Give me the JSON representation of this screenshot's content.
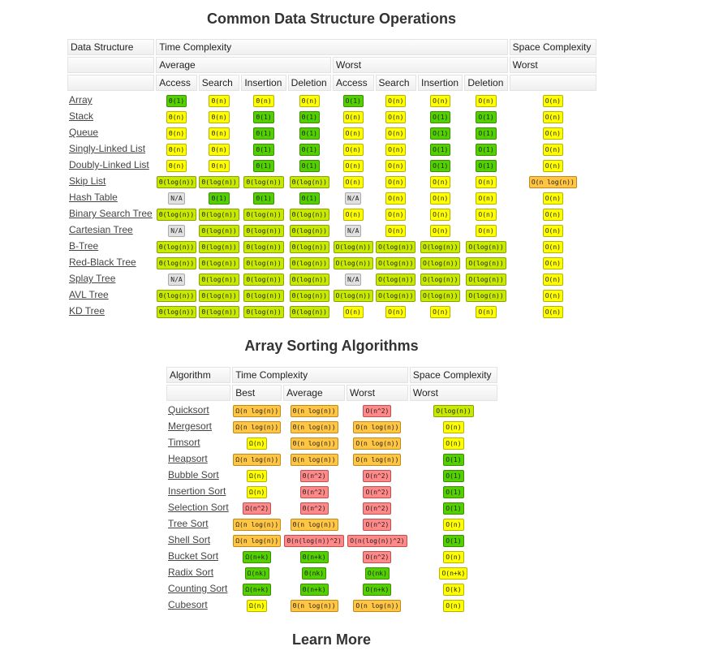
{
  "titles": {
    "ds": "Common Data Structure Operations",
    "sort": "Array Sorting Algorithms",
    "learn": "Learn More"
  },
  "ds_table": {
    "header": {
      "data_structure": "Data Structure",
      "time_complexity": "Time Complexity",
      "space_complexity": "Space Complexity",
      "average": "Average",
      "worst": "Worst",
      "space_worst": "Worst",
      "ops": [
        "Access",
        "Search",
        "Insertion",
        "Deletion",
        "Access",
        "Search",
        "Insertion",
        "Deletion"
      ]
    },
    "rows": [
      {
        "name": "Array",
        "cells": [
          [
            "Θ(1)",
            "g"
          ],
          [
            "Θ(n)",
            "y"
          ],
          [
            "Θ(n)",
            "y"
          ],
          [
            "Θ(n)",
            "y"
          ],
          [
            "O(1)",
            "g"
          ],
          [
            "O(n)",
            "y"
          ],
          [
            "O(n)",
            "y"
          ],
          [
            "O(n)",
            "y"
          ],
          [
            "O(n)",
            "y"
          ]
        ]
      },
      {
        "name": "Stack",
        "cells": [
          [
            "Θ(n)",
            "y"
          ],
          [
            "Θ(n)",
            "y"
          ],
          [
            "Θ(1)",
            "g"
          ],
          [
            "Θ(1)",
            "g"
          ],
          [
            "O(n)",
            "y"
          ],
          [
            "O(n)",
            "y"
          ],
          [
            "O(1)",
            "g"
          ],
          [
            "O(1)",
            "g"
          ],
          [
            "O(n)",
            "y"
          ]
        ]
      },
      {
        "name": "Queue",
        "cells": [
          [
            "Θ(n)",
            "y"
          ],
          [
            "Θ(n)",
            "y"
          ],
          [
            "Θ(1)",
            "g"
          ],
          [
            "Θ(1)",
            "g"
          ],
          [
            "O(n)",
            "y"
          ],
          [
            "O(n)",
            "y"
          ],
          [
            "O(1)",
            "g"
          ],
          [
            "O(1)",
            "g"
          ],
          [
            "O(n)",
            "y"
          ]
        ]
      },
      {
        "name": "Singly-Linked List",
        "cells": [
          [
            "Θ(n)",
            "y"
          ],
          [
            "Θ(n)",
            "y"
          ],
          [
            "Θ(1)",
            "g"
          ],
          [
            "Θ(1)",
            "g"
          ],
          [
            "O(n)",
            "y"
          ],
          [
            "O(n)",
            "y"
          ],
          [
            "O(1)",
            "g"
          ],
          [
            "O(1)",
            "g"
          ],
          [
            "O(n)",
            "y"
          ]
        ]
      },
      {
        "name": "Doubly-Linked List",
        "cells": [
          [
            "Θ(n)",
            "y"
          ],
          [
            "Θ(n)",
            "y"
          ],
          [
            "Θ(1)",
            "g"
          ],
          [
            "Θ(1)",
            "g"
          ],
          [
            "O(n)",
            "y"
          ],
          [
            "O(n)",
            "y"
          ],
          [
            "O(1)",
            "g"
          ],
          [
            "O(1)",
            "g"
          ],
          [
            "O(n)",
            "y"
          ]
        ]
      },
      {
        "name": "Skip List",
        "cells": [
          [
            "Θ(log(n))",
            "lg"
          ],
          [
            "Θ(log(n))",
            "lg"
          ],
          [
            "Θ(log(n))",
            "lg"
          ],
          [
            "Θ(log(n))",
            "lg"
          ],
          [
            "O(n)",
            "y"
          ],
          [
            "O(n)",
            "y"
          ],
          [
            "O(n)",
            "y"
          ],
          [
            "O(n)",
            "y"
          ],
          [
            "O(n log(n))",
            "o"
          ]
        ]
      },
      {
        "name": "Hash Table",
        "cells": [
          [
            "N/A",
            "gr"
          ],
          [
            "Θ(1)",
            "g"
          ],
          [
            "Θ(1)",
            "g"
          ],
          [
            "Θ(1)",
            "g"
          ],
          [
            "N/A",
            "gr"
          ],
          [
            "O(n)",
            "y"
          ],
          [
            "O(n)",
            "y"
          ],
          [
            "O(n)",
            "y"
          ],
          [
            "O(n)",
            "y"
          ]
        ]
      },
      {
        "name": "Binary Search Tree",
        "cells": [
          [
            "Θ(log(n))",
            "lg"
          ],
          [
            "Θ(log(n))",
            "lg"
          ],
          [
            "Θ(log(n))",
            "lg"
          ],
          [
            "Θ(log(n))",
            "lg"
          ],
          [
            "O(n)",
            "y"
          ],
          [
            "O(n)",
            "y"
          ],
          [
            "O(n)",
            "y"
          ],
          [
            "O(n)",
            "y"
          ],
          [
            "O(n)",
            "y"
          ]
        ]
      },
      {
        "name": "Cartesian Tree",
        "cells": [
          [
            "N/A",
            "gr"
          ],
          [
            "Θ(log(n))",
            "lg"
          ],
          [
            "Θ(log(n))",
            "lg"
          ],
          [
            "Θ(log(n))",
            "lg"
          ],
          [
            "N/A",
            "gr"
          ],
          [
            "O(n)",
            "y"
          ],
          [
            "O(n)",
            "y"
          ],
          [
            "O(n)",
            "y"
          ],
          [
            "O(n)",
            "y"
          ]
        ]
      },
      {
        "name": "B-Tree",
        "cells": [
          [
            "Θ(log(n))",
            "lg"
          ],
          [
            "Θ(log(n))",
            "lg"
          ],
          [
            "Θ(log(n))",
            "lg"
          ],
          [
            "Θ(log(n))",
            "lg"
          ],
          [
            "O(log(n))",
            "lg"
          ],
          [
            "O(log(n))",
            "lg"
          ],
          [
            "O(log(n))",
            "lg"
          ],
          [
            "O(log(n))",
            "lg"
          ],
          [
            "O(n)",
            "y"
          ]
        ]
      },
      {
        "name": "Red-Black Tree",
        "cells": [
          [
            "Θ(log(n))",
            "lg"
          ],
          [
            "Θ(log(n))",
            "lg"
          ],
          [
            "Θ(log(n))",
            "lg"
          ],
          [
            "Θ(log(n))",
            "lg"
          ],
          [
            "O(log(n))",
            "lg"
          ],
          [
            "O(log(n))",
            "lg"
          ],
          [
            "O(log(n))",
            "lg"
          ],
          [
            "O(log(n))",
            "lg"
          ],
          [
            "O(n)",
            "y"
          ]
        ]
      },
      {
        "name": "Splay Tree",
        "cells": [
          [
            "N/A",
            "gr"
          ],
          [
            "Θ(log(n))",
            "lg"
          ],
          [
            "Θ(log(n))",
            "lg"
          ],
          [
            "Θ(log(n))",
            "lg"
          ],
          [
            "N/A",
            "gr"
          ],
          [
            "O(log(n))",
            "lg"
          ],
          [
            "O(log(n))",
            "lg"
          ],
          [
            "O(log(n))",
            "lg"
          ],
          [
            "O(n)",
            "y"
          ]
        ]
      },
      {
        "name": "AVL Tree",
        "cells": [
          [
            "Θ(log(n))",
            "lg"
          ],
          [
            "Θ(log(n))",
            "lg"
          ],
          [
            "Θ(log(n))",
            "lg"
          ],
          [
            "Θ(log(n))",
            "lg"
          ],
          [
            "O(log(n))",
            "lg"
          ],
          [
            "O(log(n))",
            "lg"
          ],
          [
            "O(log(n))",
            "lg"
          ],
          [
            "O(log(n))",
            "lg"
          ],
          [
            "O(n)",
            "y"
          ]
        ]
      },
      {
        "name": "KD Tree",
        "cells": [
          [
            "Θ(log(n))",
            "lg"
          ],
          [
            "Θ(log(n))",
            "lg"
          ],
          [
            "Θ(log(n))",
            "lg"
          ],
          [
            "Θ(log(n))",
            "lg"
          ],
          [
            "O(n)",
            "y"
          ],
          [
            "O(n)",
            "y"
          ],
          [
            "O(n)",
            "y"
          ],
          [
            "O(n)",
            "y"
          ],
          [
            "O(n)",
            "y"
          ]
        ]
      }
    ]
  },
  "sort_table": {
    "header": {
      "algorithm": "Algorithm",
      "time_complexity": "Time Complexity",
      "space_complexity": "Space Complexity",
      "best": "Best",
      "average": "Average",
      "worst": "Worst",
      "space_worst": "Worst"
    },
    "rows": [
      {
        "name": "Quicksort",
        "cells": [
          [
            "Ω(n log(n))",
            "o"
          ],
          [
            "Θ(n log(n))",
            "o"
          ],
          [
            "O(n^2)",
            "r"
          ],
          [
            "O(log(n))",
            "lg"
          ]
        ]
      },
      {
        "name": "Mergesort",
        "cells": [
          [
            "Ω(n log(n))",
            "o"
          ],
          [
            "Θ(n log(n))",
            "o"
          ],
          [
            "O(n log(n))",
            "o"
          ],
          [
            "O(n)",
            "y"
          ]
        ]
      },
      {
        "name": "Timsort",
        "cells": [
          [
            "Ω(n)",
            "y"
          ],
          [
            "Θ(n log(n))",
            "o"
          ],
          [
            "O(n log(n))",
            "o"
          ],
          [
            "O(n)",
            "y"
          ]
        ]
      },
      {
        "name": "Heapsort",
        "cells": [
          [
            "Ω(n log(n))",
            "o"
          ],
          [
            "Θ(n log(n))",
            "o"
          ],
          [
            "O(n log(n))",
            "o"
          ],
          [
            "O(1)",
            "g"
          ]
        ]
      },
      {
        "name": "Bubble Sort",
        "cells": [
          [
            "Ω(n)",
            "y"
          ],
          [
            "Θ(n^2)",
            "r"
          ],
          [
            "O(n^2)",
            "r"
          ],
          [
            "O(1)",
            "g"
          ]
        ]
      },
      {
        "name": "Insertion Sort",
        "cells": [
          [
            "Ω(n)",
            "y"
          ],
          [
            "Θ(n^2)",
            "r"
          ],
          [
            "O(n^2)",
            "r"
          ],
          [
            "O(1)",
            "g"
          ]
        ]
      },
      {
        "name": "Selection Sort",
        "cells": [
          [
            "Ω(n^2)",
            "r"
          ],
          [
            "Θ(n^2)",
            "r"
          ],
          [
            "O(n^2)",
            "r"
          ],
          [
            "O(1)",
            "g"
          ]
        ]
      },
      {
        "name": "Tree Sort",
        "cells": [
          [
            "Ω(n log(n))",
            "o"
          ],
          [
            "Θ(n log(n))",
            "o"
          ],
          [
            "O(n^2)",
            "r"
          ],
          [
            "O(n)",
            "y"
          ]
        ]
      },
      {
        "name": "Shell Sort",
        "cells": [
          [
            "Ω(n log(n))",
            "o"
          ],
          [
            "Θ(n(log(n))^2)",
            "r"
          ],
          [
            "O(n(log(n))^2)",
            "r"
          ],
          [
            "O(1)",
            "g"
          ]
        ]
      },
      {
        "name": "Bucket Sort",
        "cells": [
          [
            "Ω(n+k)",
            "g"
          ],
          [
            "Θ(n+k)",
            "g"
          ],
          [
            "O(n^2)",
            "r"
          ],
          [
            "O(n)",
            "y"
          ]
        ]
      },
      {
        "name": "Radix Sort",
        "cells": [
          [
            "Ω(nk)",
            "g"
          ],
          [
            "Θ(nk)",
            "g"
          ],
          [
            "O(nk)",
            "g"
          ],
          [
            "O(n+k)",
            "y"
          ]
        ]
      },
      {
        "name": "Counting Sort",
        "cells": [
          [
            "Ω(n+k)",
            "g"
          ],
          [
            "Θ(n+k)",
            "g"
          ],
          [
            "O(n+k)",
            "g"
          ],
          [
            "O(k)",
            "y"
          ]
        ]
      },
      {
        "name": "Cubesort",
        "cells": [
          [
            "Ω(n)",
            "y"
          ],
          [
            "Θ(n log(n))",
            "o"
          ],
          [
            "O(n log(n))",
            "o"
          ],
          [
            "O(n)",
            "y"
          ]
        ]
      }
    ]
  },
  "colors": {
    "g": "#53d000",
    "lg": "#c8ea00",
    "y": "#ffff00",
    "o": "#ffc543",
    "r": "#ff8989",
    "gr": "#e0e0e0"
  }
}
